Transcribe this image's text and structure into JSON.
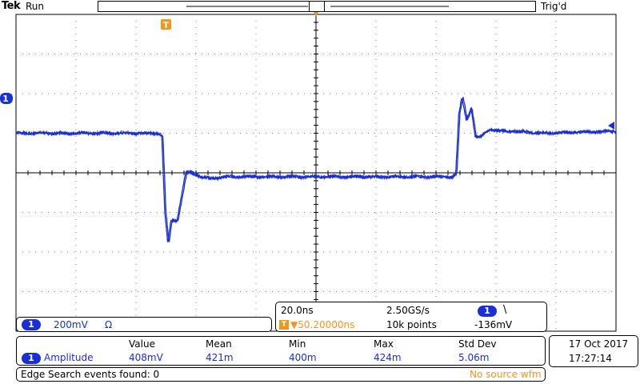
{
  "header": {
    "brand": "Tek",
    "run_state": "Run",
    "trigger_state": "Trig'd"
  },
  "markers": {
    "trigger_position": "T",
    "channel": "1"
  },
  "channel_panel": {
    "channel": "1",
    "scale": "200mV",
    "coupling": "Ω"
  },
  "timebase": {
    "time_per_div": "20.0ns",
    "sample_rate": "2.50GS/s",
    "trigger_channel": "1",
    "trigger_slope": "\\",
    "position": "▼50.20000ns",
    "record_length": "10k points",
    "trigger_level": "-136mV"
  },
  "measurements": {
    "headers": [
      "Value",
      "Mean",
      "Min",
      "Max",
      "Std Dev"
    ],
    "channel": "1",
    "label": "Amplitude",
    "values": [
      "408mV",
      "421m",
      "400m",
      "424m",
      "5.06m"
    ]
  },
  "datetime": {
    "date": "17 Oct  2017",
    "time": "17:27:14"
  },
  "status": {
    "message": "Edge Search events found: 0",
    "source": "No source wfm"
  },
  "colors": {
    "trace": "#1a2fd6",
    "accent": "#f0961e",
    "grid": "#808080"
  },
  "chart_data": {
    "type": "line",
    "title": "",
    "xlabel": "",
    "ylabel": "",
    "grid": true,
    "x_divisions": 10,
    "y_divisions": 8,
    "series": [
      {
        "x": [
          0,
          4.8,
          4.9,
          5.0,
          5.1,
          5.2,
          5.4,
          5.55,
          5.7,
          5.9,
          6.2,
          6.5,
          7.0,
          7.5,
          10.0,
          14.6,
          14.7,
          14.8,
          14.9,
          15.05,
          15.2,
          15.35,
          15.5,
          15.8,
          16.2,
          16.6,
          17.5,
          20.0
        ],
        "y": [
          1.0,
          1.0,
          0.9,
          -1.0,
          -1.8,
          -1.2,
          -1.2,
          -0.6,
          0.0,
          0.0,
          -0.1,
          -0.15,
          -0.1,
          -0.1,
          -0.1,
          -0.1,
          0.0,
          1.5,
          1.9,
          1.35,
          1.65,
          0.9,
          0.9,
          1.1,
          1.05,
          1.05,
          1.0,
          1.05
        ]
      }
    ]
  }
}
